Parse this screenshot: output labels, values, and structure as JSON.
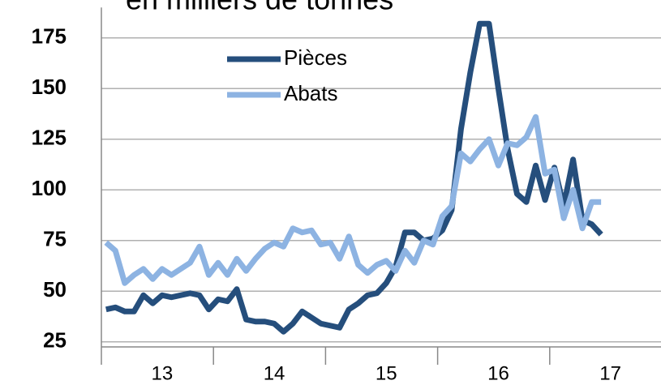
{
  "chart_data": {
    "type": "line",
    "title": "en milliers de tonnes",
    "categories": [
      null,
      null,
      null,
      null,
      null,
      null,
      "13",
      null,
      null,
      null,
      null,
      null,
      null,
      null,
      null,
      null,
      null,
      null,
      "14",
      null,
      null,
      null,
      null,
      null,
      null,
      null,
      null,
      null,
      null,
      null,
      "15",
      null,
      null,
      null,
      null,
      null,
      null,
      null,
      null,
      null,
      null,
      null,
      "16",
      null,
      null,
      null,
      null,
      null,
      null,
      null,
      null,
      null,
      null,
      null,
      "17",
      null,
      null,
      null,
      null,
      null
    ],
    "series": [
      {
        "name": "Pièces",
        "color": "#254e7c",
        "values": [
          41,
          42,
          40,
          40,
          48,
          44,
          48,
          47,
          48,
          49,
          48,
          41,
          46,
          45,
          51,
          36,
          35,
          35,
          34,
          30,
          34,
          40,
          37,
          34,
          33,
          32,
          41,
          44,
          48,
          49,
          54,
          62,
          79,
          79,
          75,
          76,
          80,
          90,
          130,
          158,
          182,
          182,
          150,
          120,
          98,
          94,
          112,
          95,
          111,
          92,
          115,
          85,
          83,
          78,
          null,
          null,
          null,
          null,
          null,
          null
        ]
      },
      {
        "name": "Abats",
        "color": "#8db3e2",
        "values": [
          74,
          70,
          54,
          58,
          61,
          56,
          61,
          58,
          61,
          64,
          72,
          58,
          64,
          58,
          66,
          60,
          66,
          71,
          74,
          72,
          81,
          79,
          80,
          73,
          74,
          66,
          77,
          63,
          59,
          63,
          65,
          60,
          70,
          64,
          75,
          73,
          87,
          92,
          118,
          114,
          120,
          125,
          112,
          123,
          122,
          126,
          136,
          108,
          110,
          86,
          100,
          81,
          94,
          94,
          null,
          null,
          null,
          null,
          null,
          null
        ]
      }
    ],
    "ylim": [
      22.5,
      190
    ],
    "yticks": [
      25,
      50,
      75,
      100,
      125,
      150,
      175
    ],
    "grid": true,
    "legend": "top"
  }
}
